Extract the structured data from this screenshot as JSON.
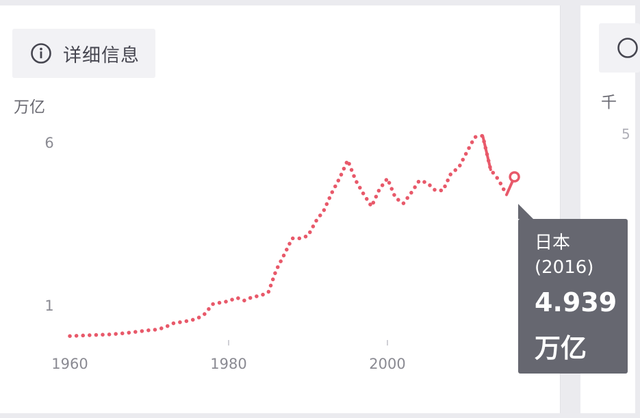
{
  "details_button": {
    "label": "详细信息",
    "icon": "info-icon"
  },
  "second_card": {
    "unit": "千",
    "tick": "5"
  },
  "chart_data": {
    "type": "line",
    "ylabel": "万亿",
    "yticks": [
      1,
      6
    ],
    "xticks": [
      1960,
      1980,
      2000
    ],
    "xlim": [
      1960,
      2016
    ],
    "ylim": [
      0,
      6.5
    ],
    "series": [
      {
        "color": "#e8596a",
        "x": [
          1960,
          1961,
          1962,
          1963,
          1964,
          1965,
          1966,
          1967,
          1968,
          1969,
          1970,
          1971,
          1972,
          1973,
          1974,
          1975,
          1976,
          1977,
          1978,
          1979,
          1980,
          1981,
          1982,
          1983,
          1984,
          1985,
          1986,
          1987,
          1988,
          1989,
          1990,
          1991,
          1992,
          1993,
          1994,
          1995,
          1996,
          1997,
          1998,
          1999,
          2000,
          2001,
          2002,
          2003,
          2004,
          2005,
          2006,
          2007,
          2008,
          2009,
          2010,
          2011,
          2012,
          2013,
          2014,
          2015,
          2016
        ],
        "values": [
          0.05,
          0.06,
          0.07,
          0.08,
          0.09,
          0.1,
          0.12,
          0.14,
          0.17,
          0.2,
          0.23,
          0.25,
          0.32,
          0.44,
          0.48,
          0.52,
          0.58,
          0.73,
          1.03,
          1.08,
          1.12,
          1.23,
          1.14,
          1.25,
          1.29,
          1.39,
          2.08,
          2.55,
          3.05,
          3.05,
          3.13,
          3.58,
          3.91,
          4.45,
          4.91,
          5.45,
          4.83,
          4.41,
          4.03,
          4.56,
          4.89,
          4.3,
          4.12,
          4.45,
          4.82,
          4.76,
          4.53,
          4.52,
          5.04,
          5.23,
          5.7,
          6.16,
          6.2,
          5.16,
          4.85,
          4.39,
          4.939
        ]
      }
    ],
    "tooltip": {
      "country": "日本",
      "year": "(2016)",
      "value": "4.939",
      "unit": "万亿"
    }
  }
}
